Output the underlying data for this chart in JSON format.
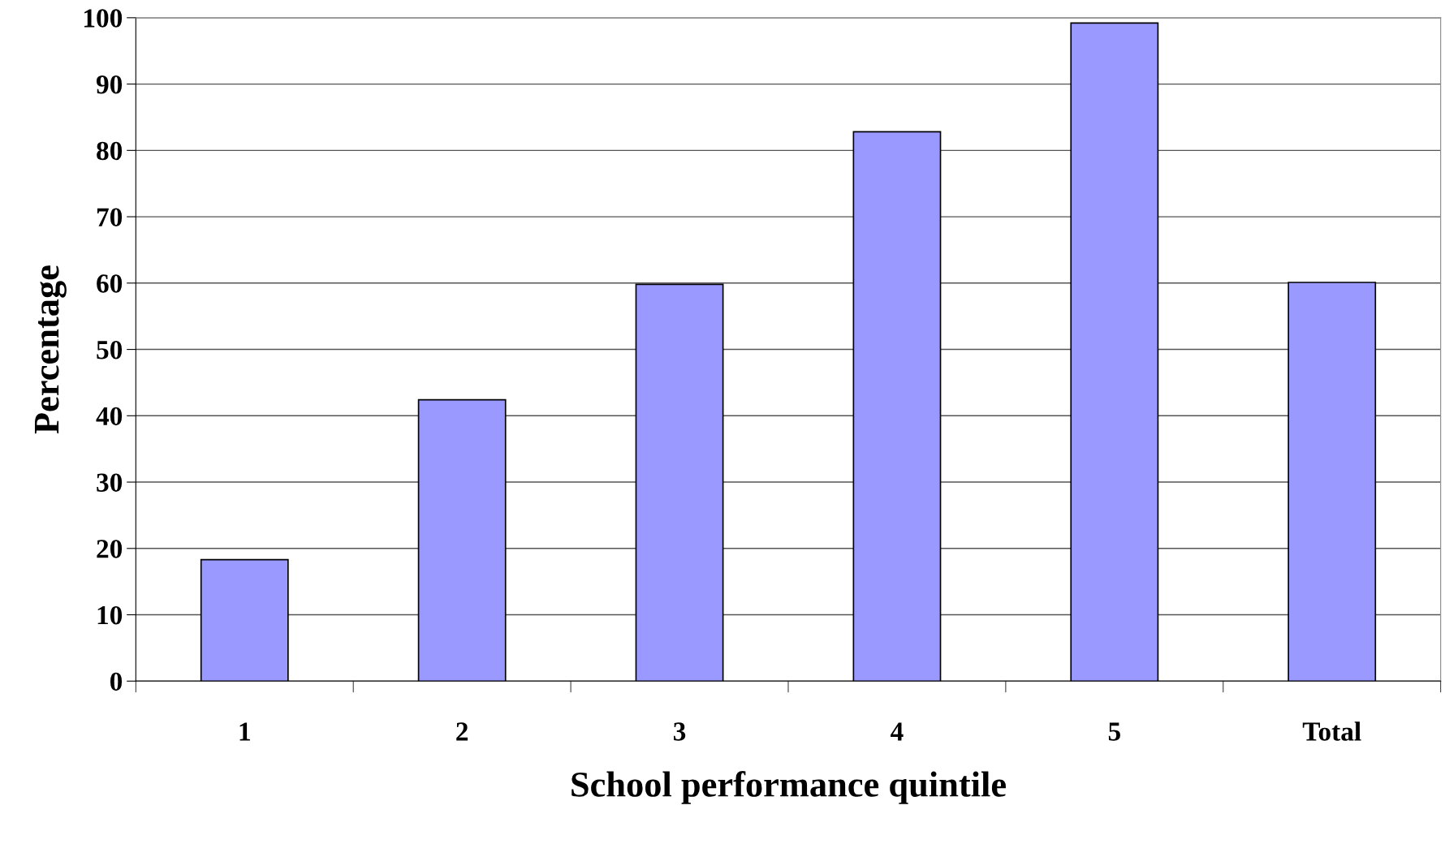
{
  "chart_data": {
    "type": "bar",
    "xlabel": "School performance quintile",
    "ylabel": "Percentage",
    "categories": [
      "1",
      "2",
      "3",
      "4",
      "5",
      "Total"
    ],
    "values": [
      18.3,
      42.4,
      59.8,
      82.8,
      99.2,
      60.1
    ],
    "color": "#9999ff",
    "ylim": [
      0,
      100
    ],
    "yticks": [
      0,
      10,
      20,
      30,
      40,
      50,
      60,
      70,
      80,
      90,
      100
    ],
    "grid": "y"
  }
}
